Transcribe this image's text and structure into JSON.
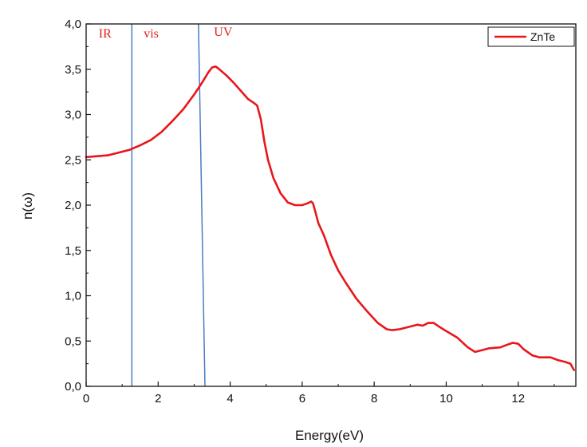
{
  "chart_data": {
    "type": "line",
    "title": "",
    "xlabel": "Energy(eV)",
    "ylabel": "n(ω)",
    "xlim": [
      0,
      13.6
    ],
    "ylim": [
      0,
      4.0
    ],
    "x_ticks": [
      0,
      2,
      4,
      6,
      8,
      10,
      12
    ],
    "x_tick_labels": [
      "0",
      "2",
      "4",
      "6",
      "8",
      "10",
      "12"
    ],
    "y_ticks": [
      0,
      0.5,
      1.0,
      1.5,
      2.0,
      2.5,
      3.0,
      3.5,
      4.0
    ],
    "y_tick_labels": [
      "0,0",
      "0,5",
      "1,0",
      "1,5",
      "2,0",
      "2,5",
      "3,0",
      "3,5",
      "4,0"
    ],
    "grid": false,
    "legend_position": "top-right",
    "series": [
      {
        "name": "ZnTe",
        "color": "#e8161b",
        "x": [
          0,
          0.3,
          0.6,
          0.9,
          1.2,
          1.5,
          1.8,
          2.1,
          2.4,
          2.7,
          3.0,
          3.2,
          3.4,
          3.5,
          3.6,
          3.7,
          3.9,
          4.1,
          4.3,
          4.5,
          4.65,
          4.75,
          4.85,
          4.95,
          5.05,
          5.2,
          5.4,
          5.6,
          5.8,
          6.0,
          6.15,
          6.25,
          6.3,
          6.35,
          6.45,
          6.6,
          6.8,
          7.0,
          7.2,
          7.5,
          7.8,
          8.1,
          8.35,
          8.5,
          8.7,
          9.0,
          9.2,
          9.35,
          9.5,
          9.65,
          9.8,
          10.0,
          10.3,
          10.6,
          10.8,
          11.0,
          11.2,
          11.5,
          11.7,
          11.85,
          12.0,
          12.15,
          12.4,
          12.6,
          12.9,
          13.1,
          13.3,
          13.45,
          13.55
        ],
        "y": [
          2.53,
          2.54,
          2.55,
          2.58,
          2.61,
          2.66,
          2.72,
          2.81,
          2.93,
          3.06,
          3.22,
          3.34,
          3.47,
          3.52,
          3.53,
          3.5,
          3.43,
          3.35,
          3.26,
          3.17,
          3.13,
          3.1,
          2.95,
          2.7,
          2.5,
          2.3,
          2.13,
          2.03,
          2.0,
          2.0,
          2.02,
          2.04,
          2.02,
          1.95,
          1.8,
          1.67,
          1.45,
          1.28,
          1.15,
          0.97,
          0.83,
          0.7,
          0.63,
          0.62,
          0.63,
          0.66,
          0.68,
          0.67,
          0.7,
          0.7,
          0.66,
          0.61,
          0.54,
          0.43,
          0.38,
          0.4,
          0.42,
          0.43,
          0.46,
          0.48,
          0.47,
          0.41,
          0.34,
          0.32,
          0.32,
          0.29,
          0.27,
          0.25,
          0.18
        ]
      }
    ],
    "boundaries": [
      {
        "name": "IR/vis boundary",
        "color": "#4a7cc2",
        "x_bottom": 1.27,
        "x_top": 1.27
      },
      {
        "name": "vis/UV boundary",
        "color": "#4a7cc2",
        "x_bottom": 3.3,
        "x_top": 3.12
      }
    ],
    "annotations": [
      {
        "text": "IR",
        "x": 0.35,
        "y": 3.85
      },
      {
        "text": "vis",
        "x": 1.6,
        "y": 3.85
      },
      {
        "text": "UV",
        "x": 3.55,
        "y": 3.87
      }
    ],
    "annotation_color": "#e02020",
    "axis_color": "#111111"
  }
}
